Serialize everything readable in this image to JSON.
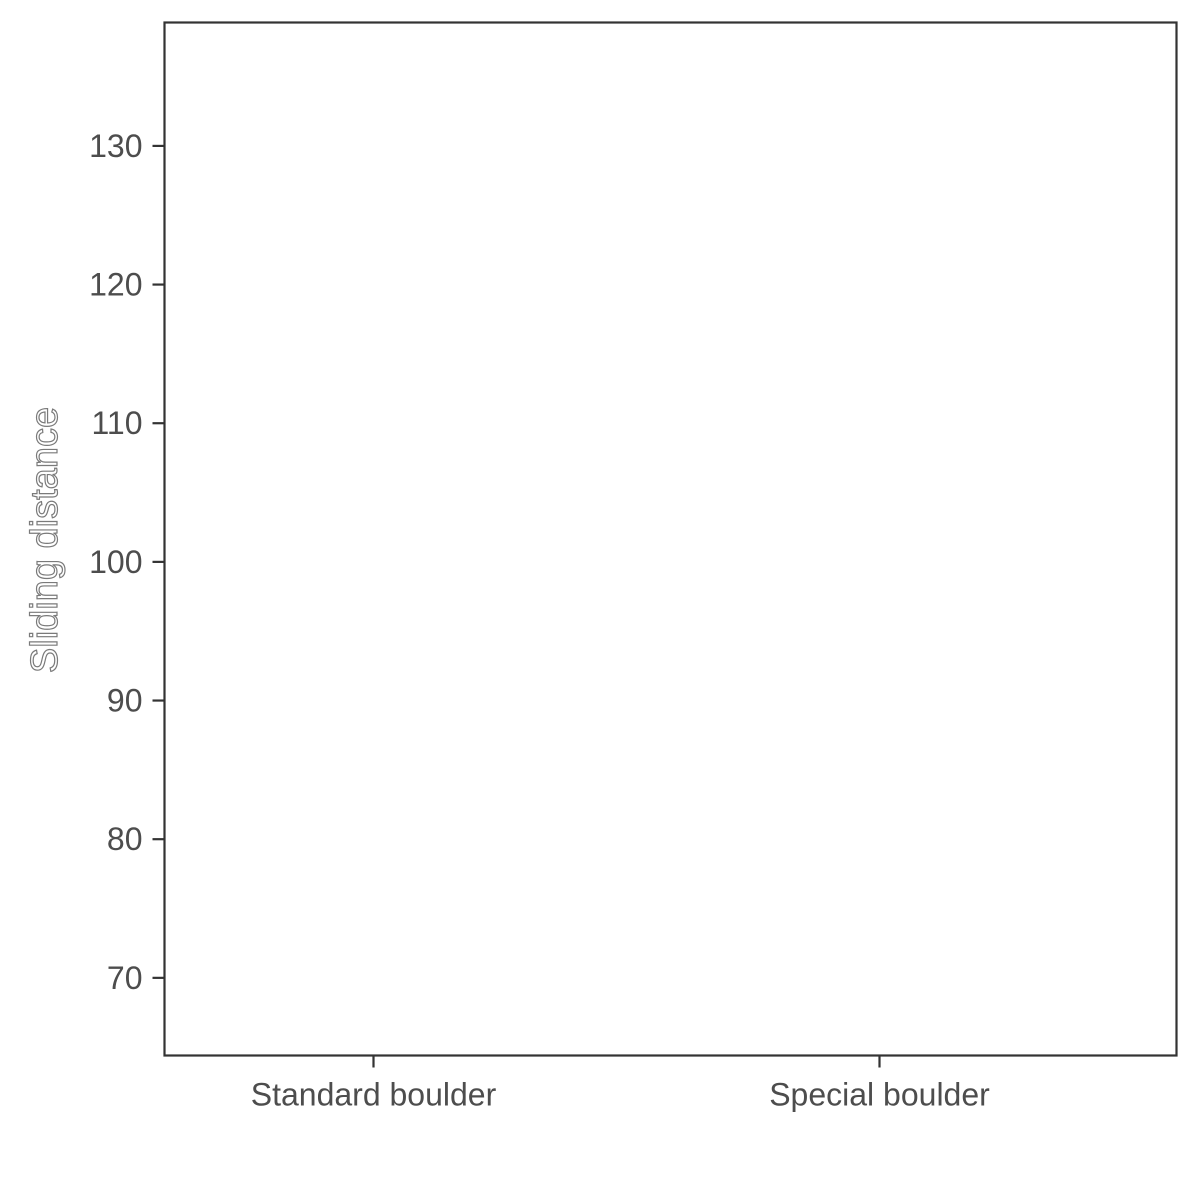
{
  "chart_data": {
    "type": "scatter",
    "title": "",
    "xlabel": "",
    "ylabel": "Sliding distance",
    "categories": [
      "Standard boulder",
      "Special boulder"
    ],
    "ylim": [
      64.4,
      138.9
    ],
    "yticks": [
      70,
      80,
      90,
      100,
      110,
      120,
      130
    ],
    "series": [],
    "grid": false,
    "legend": "none"
  }
}
